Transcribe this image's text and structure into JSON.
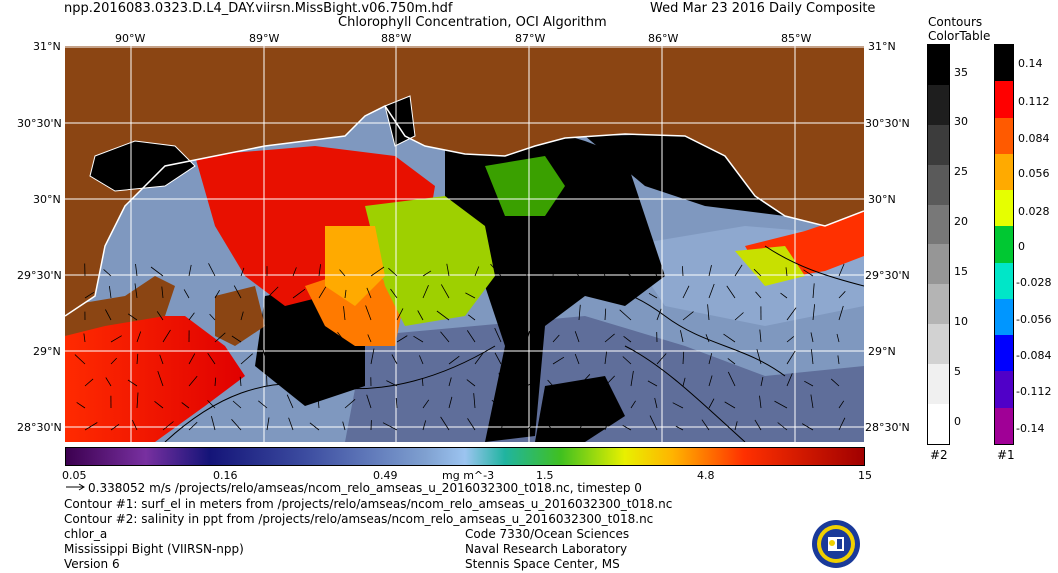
{
  "header": {
    "filename": "npp.2016083.0323.D.L4_DAY.viirsn.MissBight.v06.750m.hdf",
    "product": "Chlorophyll Concentration, OCI Algorithm",
    "composite": "Wed Mar 23 2016 Daily Composite"
  },
  "map": {
    "lon_labels": [
      "90°W",
      "89°W",
      "88°W",
      "87°W",
      "86°W",
      "85°W"
    ],
    "lat_labels_left": [
      "31°N",
      "30°30'N",
      "30°N",
      "29°30'N",
      "29°N",
      "28°30'N"
    ],
    "lat_labels_right": [
      "31°N",
      "30°30'N",
      "30°N",
      "29°30'N",
      "29°N",
      "28°30'N"
    ],
    "land_color": "#8B4513",
    "no_data_color": "#000000",
    "grid_color": "#ffffff"
  },
  "colorbar": {
    "ticks": [
      "0.05",
      "0.16",
      "0.49",
      "1.5",
      "4.8",
      "15"
    ],
    "unit": "mg m^-3"
  },
  "contours_table": {
    "title_line1": "Contours",
    "title_line2": "ColorTable",
    "labels": [
      "35",
      "30",
      "25",
      "20",
      "15",
      "10",
      "5",
      "0"
    ],
    "footer": "#2",
    "colors": [
      "#000000",
      "#1e1e1e",
      "#3c3c3c",
      "#5a5a5a",
      "#787878",
      "#969696",
      "#b4b4b4",
      "#d2d2d2",
      "#f0f0f0",
      "#ffffff"
    ]
  },
  "vector_table": {
    "labels": [
      "0.14",
      "0.112",
      "0.084",
      "0.056",
      "0.028",
      "0",
      "-0.028",
      "-0.056",
      "-0.084",
      "-0.112",
      "-0.14"
    ],
    "footer": "#1",
    "colors": [
      "#000000",
      "#ff0000",
      "#ff5a00",
      "#ffaa00",
      "#e6ff00",
      "#00c832",
      "#00e6c8",
      "#0096ff",
      "#0000ff",
      "#5000c8",
      "#a00096"
    ]
  },
  "legend": {
    "vector_line": "0.338052 m/s /projects/relo/amseas/ncom_relo_amseas_u_2016032300_t018.nc, timestep 0",
    "contour1": "Contour #1: surf_el in meters from /projects/relo/amseas/ncom_relo_amseas_u_2016032300_t018.nc",
    "contour2": "Contour #2: salinity in ppt from /projects/relo/amseas/ncom_relo_amseas_u_2016032300_t018.nc"
  },
  "footer_left": [
    "chlor_a",
    "Mississippi Bight (VIIRSN-npp)",
    "Version 6"
  ],
  "footer_center": [
    "Code 7330/Ocean Sciences",
    "Naval Research Laboratory",
    "Stennis Space Center, MS"
  ]
}
